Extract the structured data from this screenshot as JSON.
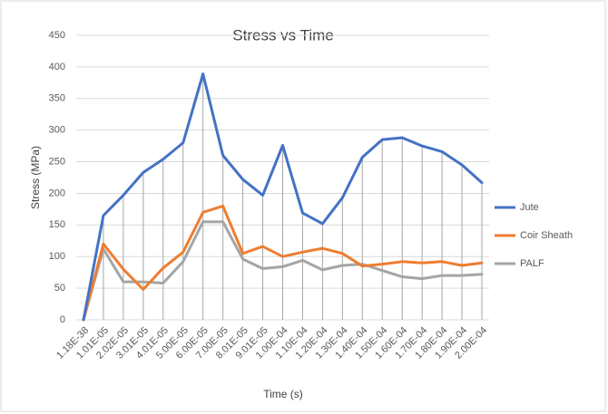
{
  "chart_data": {
    "type": "line",
    "title": "Stress vs Time",
    "x_label": "Time (s)",
    "y_label": "Stress (MPa)",
    "categories": [
      "1.18E-38",
      "1.01E-05",
      "2.02E-05",
      "3.01E-05",
      "4.01E-05",
      "5.00E-05",
      "6.00E-05",
      "7.00E-05",
      "8.01E-05",
      "9.01E-05",
      "1.00E-04",
      "1.10E-04",
      "1.20E-04",
      "1.30E-04",
      "1.40E-04",
      "1.50E-04",
      "1.60E-04",
      "1.70E-04",
      "1.80E-04",
      "1.90E-04",
      "2.00E-04"
    ],
    "series": [
      {
        "name": "Jute",
        "color": "#4472c4",
        "values": [
          0,
          165,
          197,
          233,
          254,
          280,
          389,
          260,
          222,
          197,
          276,
          169,
          152,
          193,
          257,
          285,
          288,
          275,
          266,
          245,
          217
        ]
      },
      {
        "name": "Coir Sheath",
        "color": "#ed7d31",
        "values": [
          0,
          120,
          80,
          48,
          82,
          107,
          170,
          180,
          105,
          116,
          100,
          107,
          113,
          105,
          85,
          88,
          92,
          90,
          92,
          86,
          90
        ]
      },
      {
        "name": "PALF",
        "color": "#a5a5a5",
        "values": [
          0,
          112,
          60,
          60,
          58,
          92,
          155,
          155,
          96,
          81,
          84,
          94,
          79,
          86,
          88,
          78,
          68,
          65,
          70,
          70,
          72
        ]
      }
    ],
    "ylim": [
      0,
      450
    ],
    "yticks": [
      0,
      50,
      100,
      150,
      200,
      250,
      300,
      350,
      400,
      450
    ],
    "grid": true,
    "drop_lines": true,
    "legend": "right"
  }
}
